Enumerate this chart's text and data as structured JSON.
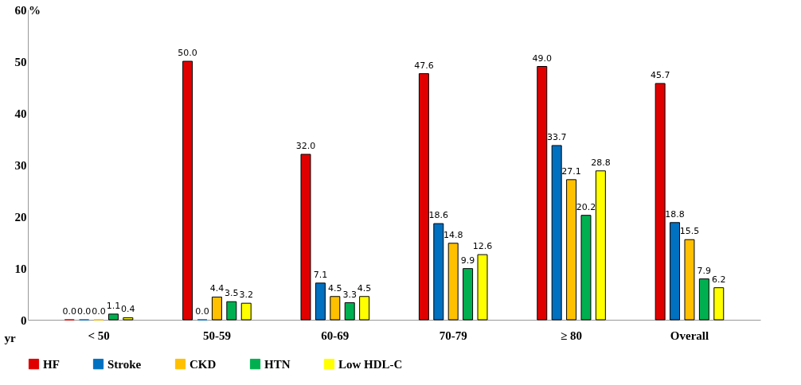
{
  "chart_data": {
    "type": "bar",
    "xlabel": "yr",
    "ylabel": "%",
    "categories": [
      "< 50",
      "50-59",
      "60-69",
      "70-79",
      "≥ 80",
      "Overall"
    ],
    "series": [
      {
        "name": "HF",
        "color": "#e00000",
        "values": [
          0,
          50,
          32,
          47.6,
          49,
          45.7
        ],
        "value_labels": [
          "0.0",
          "50.0",
          "32.0",
          "47.6",
          "49.0",
          "45.7"
        ]
      },
      {
        "name": "Stroke",
        "color": "#0070c0",
        "values": [
          0,
          0,
          7.1,
          18.6,
          33.7,
          18.8
        ],
        "value_labels": [
          "0.0",
          "0.0",
          "7.1",
          "18.6",
          "33.7",
          "18.8"
        ]
      },
      {
        "name": "CKD",
        "color": "#ffc000",
        "values": [
          0,
          4.4,
          4.5,
          14.8,
          27.1,
          15.5
        ],
        "value_labels": [
          "0.0",
          "4.4",
          "4.5",
          "14.8",
          "27.1",
          "15.5"
        ]
      },
      {
        "name": "HTN",
        "color": "#00b050",
        "values": [
          1.1,
          3.5,
          3.3,
          9.9,
          20.2,
          7.9
        ],
        "value_labels": [
          "1.1",
          "3.5",
          "3.3",
          "9.9",
          "20.2",
          "7.9"
        ]
      },
      {
        "name": "Low HDL-C",
        "color": "#ffff00",
        "values": [
          0.4,
          3.2,
          4.5,
          12.6,
          28.8,
          6.2
        ],
        "value_labels": [
          "0.4",
          "3.2",
          "4.5",
          "12.6",
          "28.8",
          "6.2"
        ]
      }
    ],
    "ylim": [
      0,
      60
    ],
    "yticks": [
      0,
      10,
      20,
      30,
      40,
      50,
      60
    ],
    "grid": false,
    "legend": "bottom"
  }
}
